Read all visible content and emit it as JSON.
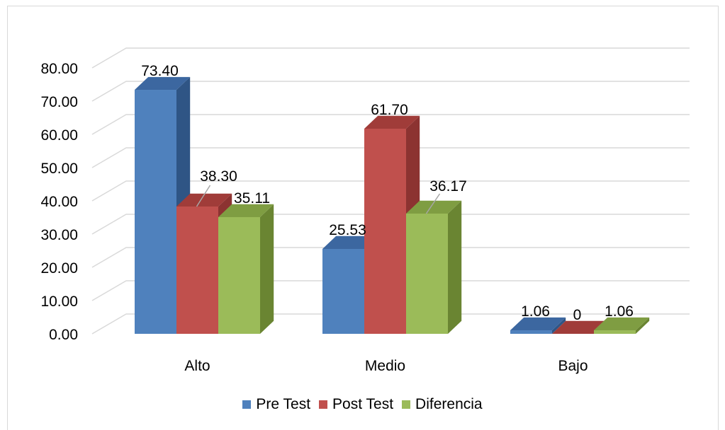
{
  "chart_data": {
    "type": "bar",
    "style": "3d-clustered-column",
    "categories": [
      "Alto",
      "Medio",
      "Bajo"
    ],
    "series": [
      {
        "name": "Pre Test",
        "values": [
          73.4,
          25.53,
          1.06
        ],
        "labels": [
          "73.40",
          "25.53",
          "1.06"
        ],
        "color": "#4f81bd",
        "side_color": "#2f5585",
        "top_color": "#3c67a0"
      },
      {
        "name": "Post Test",
        "values": [
          38.3,
          61.7,
          0
        ],
        "labels": [
          "38.30",
          "61.70",
          "0"
        ],
        "color": "#c0504d",
        "side_color": "#8c3331",
        "top_color": "#a03c39"
      },
      {
        "name": "Diferencia",
        "values": [
          35.11,
          36.17,
          1.06
        ],
        "labels": [
          "35.11",
          "36.17",
          "1.06"
        ],
        "color": "#9bbb59",
        "side_color": "#6a8532",
        "top_color": "#7f9d42"
      }
    ],
    "ylim": [
      0,
      80
    ],
    "yticks": [
      "0.00",
      "10.00",
      "20.00",
      "30.00",
      "40.00",
      "50.00",
      "60.00",
      "70.00",
      "80.00"
    ],
    "grid": true,
    "legend_position": "bottom",
    "title": "",
    "xlabel": "",
    "ylabel": ""
  }
}
